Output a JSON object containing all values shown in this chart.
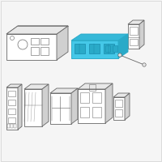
{
  "background_color": "#f7f7f7",
  "border_color": "#d0d0d0",
  "highlight_color": "#45c8e8",
  "highlight_dark": "#2aaac8",
  "highlight_mid": "#35b8d8",
  "line_color": "#666666",
  "line_color_light": "#999999",
  "line_width": 0.6,
  "image_bg": "#f5f5f5"
}
